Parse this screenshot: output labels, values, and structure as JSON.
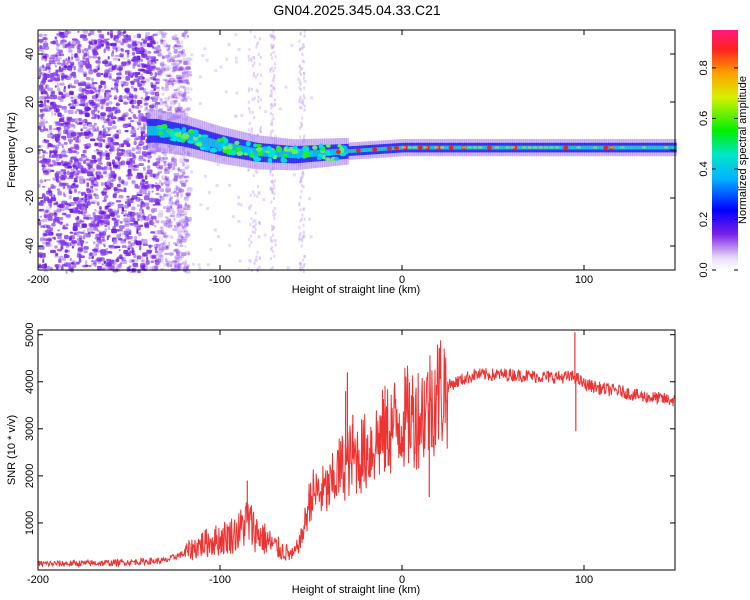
{
  "title": "GN04.2025.345.04.33.C21",
  "chart_data": [
    {
      "type": "heatmap",
      "name": "spectrogram",
      "xlabel": "Height of straight line (km)",
      "ylabel": "Frequency (Hz)",
      "xlim": [
        -200,
        150
      ],
      "ylim": [
        -50,
        50
      ],
      "x_ticks": [
        -200,
        -100,
        0,
        100
      ],
      "y_ticks": [
        -40,
        -20,
        0,
        20,
        40
      ],
      "colorbar": {
        "label": "Normalized spectral amplitude",
        "range": [
          0,
          0.95
        ],
        "ticks": [
          0.0,
          0.2,
          0.4,
          0.6,
          0.8
        ]
      },
      "ridge": {
        "x": [
          -135,
          -120,
          -100,
          -80,
          -60,
          -40,
          -20,
          0,
          50,
          100,
          150
        ],
        "freq": [
          8,
          6,
          2,
          -1,
          -2,
          -1,
          0,
          1,
          1,
          1,
          1
        ]
      }
    },
    {
      "type": "line",
      "name": "snr",
      "xlabel": "Height of straight line (km)",
      "ylabel": "SNR (10 * v/v)",
      "xlim": [
        -200,
        150
      ],
      "ylim": [
        0,
        5100
      ],
      "x_ticks": [
        -200,
        -100,
        0,
        100
      ],
      "y_ticks": [
        1000,
        2000,
        3000,
        4000,
        5000
      ],
      "color": "#ee3333",
      "envelope": {
        "x": [
          -200,
          -160,
          -130,
          -120,
          -110,
          -100,
          -90,
          -85,
          -80,
          -70,
          -60,
          -55,
          -50,
          -40,
          -35,
          -30,
          -20,
          -10,
          0,
          10,
          20,
          30,
          40,
          60,
          80,
          95,
          100,
          110,
          120,
          130,
          150
        ],
        "y": [
          130,
          150,
          200,
          350,
          550,
          650,
          800,
          1050,
          800,
          500,
          300,
          700,
          1600,
          1700,
          2100,
          2300,
          2500,
          2900,
          3200,
          3300,
          3800,
          4000,
          4150,
          4150,
          4100,
          4100,
          3950,
          3850,
          3800,
          3700,
          3600
        ]
      },
      "spikes": [
        {
          "x": 95,
          "y": 5050
        },
        {
          "x": 95.5,
          "y": 2950
        },
        {
          "x": -30,
          "y": 4200
        },
        {
          "x": -31,
          "y": 3800
        },
        {
          "x": -85,
          "y": 1900
        },
        {
          "x": 15,
          "y": 1550
        },
        {
          "x": -27,
          "y": 3300
        }
      ]
    }
  ]
}
